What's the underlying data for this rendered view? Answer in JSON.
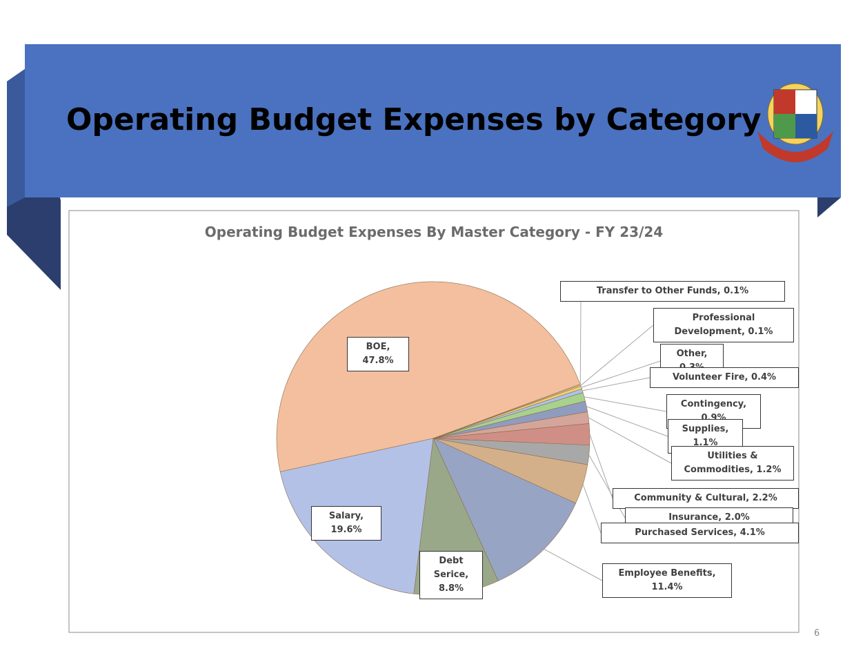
{
  "header": {
    "title": "Operating Budget Expenses by Category"
  },
  "chart_data": {
    "type": "pie",
    "title": "Operating Budget Expenses By Master Category - FY 23/24",
    "labels": [
      "BOE, 47.8%",
      "Transfer to Other Funds, 0.1%",
      "Professional Development, 0.1%",
      "Other, 0.3%",
      "Volunteer Fire, 0.4%",
      "Contingency, 0.9%",
      "Supplies, 1.1%",
      "Utilities & Commodities, 1.2%",
      "Community & Cultural, 2.2%",
      "Insurance, 2.0%",
      "Purchased Services, 4.1%",
      "Employee Benefits, 11.4%",
      "Debt Serice, 8.8%",
      "Salary, 19.6%"
    ],
    "values": [
      47.8,
      0.1,
      0.1,
      0.3,
      0.4,
      0.9,
      1.1,
      1.2,
      2.2,
      2.0,
      4.1,
      11.4,
      8.8,
      19.6
    ],
    "colors": [
      "#f3bf9f",
      "#f6d99c",
      "#f2e2b0",
      "#f7cf72",
      "#a9c3ea",
      "#a9d18e",
      "#8f9cbf",
      "#d4a59b",
      "#cf8f86",
      "#a8a8a8",
      "#d4b08a",
      "#98a4c4",
      "#9aa88a",
      "#b3c1e7"
    ]
  },
  "footer": {
    "page_number": "6"
  }
}
